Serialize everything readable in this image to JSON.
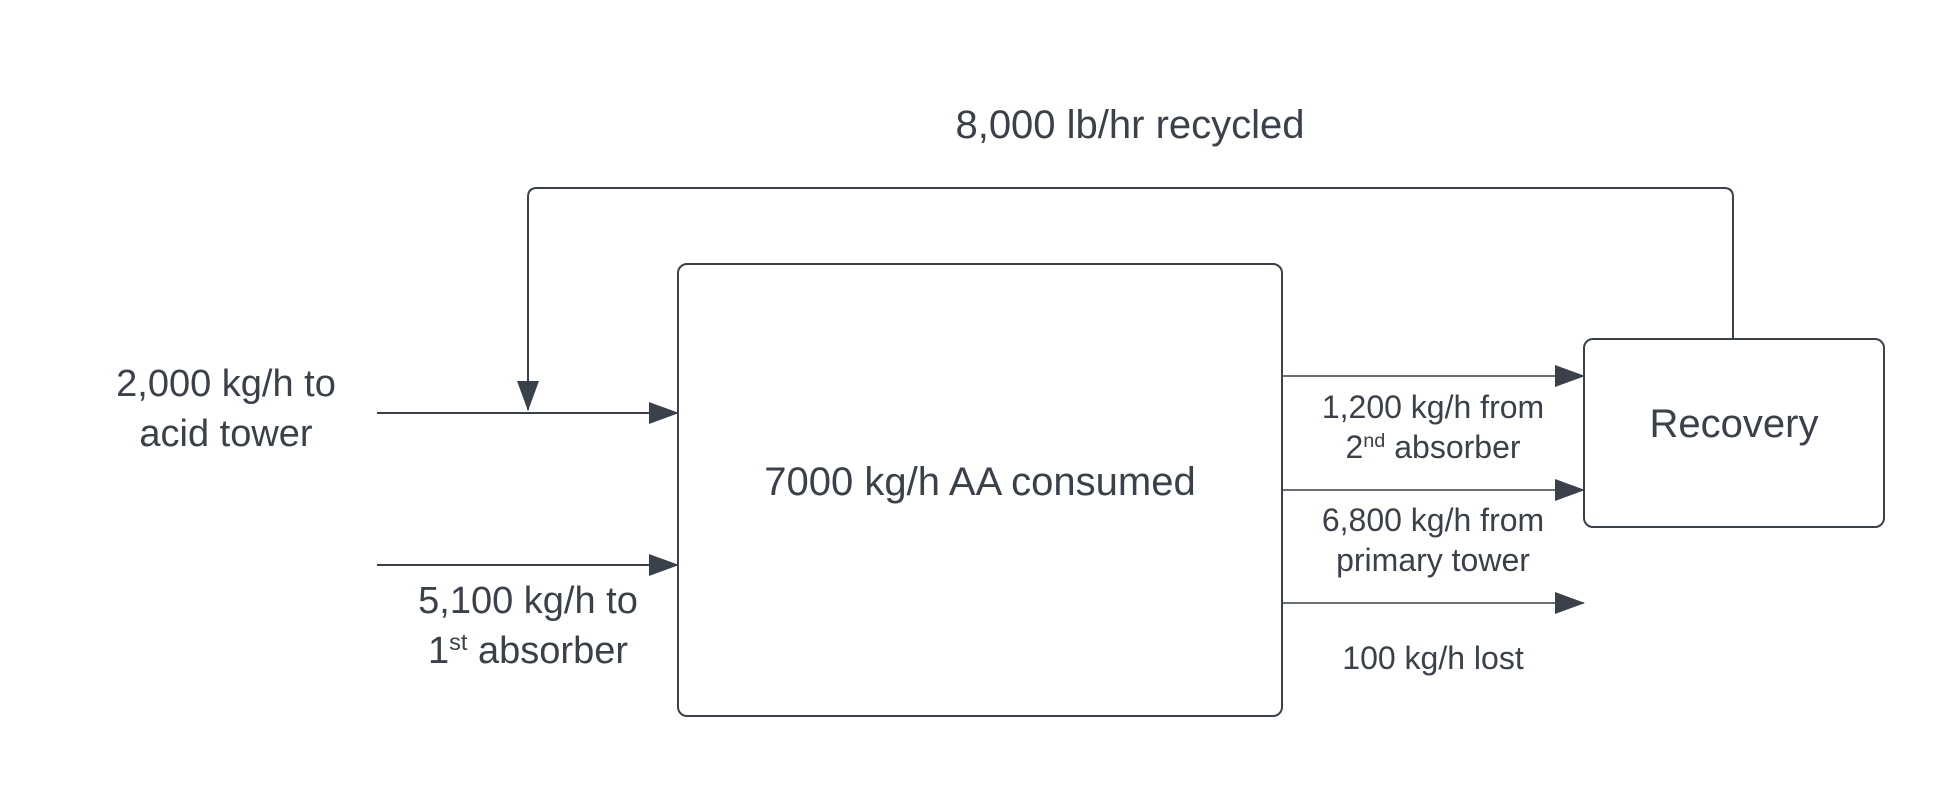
{
  "recycle_label": "8,000 lb/hr recycled",
  "feed_acid": {
    "line1": "2,000 kg/h to",
    "line2": "acid tower"
  },
  "feed_absorber": {
    "line1": "5,100 kg/h to",
    "line2_num": "1",
    "line2_sup": "st",
    "line2_rest": " absorber"
  },
  "main_box_label": "7000 kg/h AA consumed",
  "recovery_label": "Recovery",
  "out_second_absorber": {
    "line1": "1,200 kg/h from",
    "line2_num": "2",
    "line2_sup": "nd",
    "line2_rest": " absorber"
  },
  "out_primary_tower": {
    "line1": "6,800 kg/h from",
    "line2": "primary tower"
  },
  "out_lost": "100 kg/h lost",
  "colors": {
    "stroke": "#3a414a",
    "text": "#3a414a",
    "background": "#ffffff"
  }
}
